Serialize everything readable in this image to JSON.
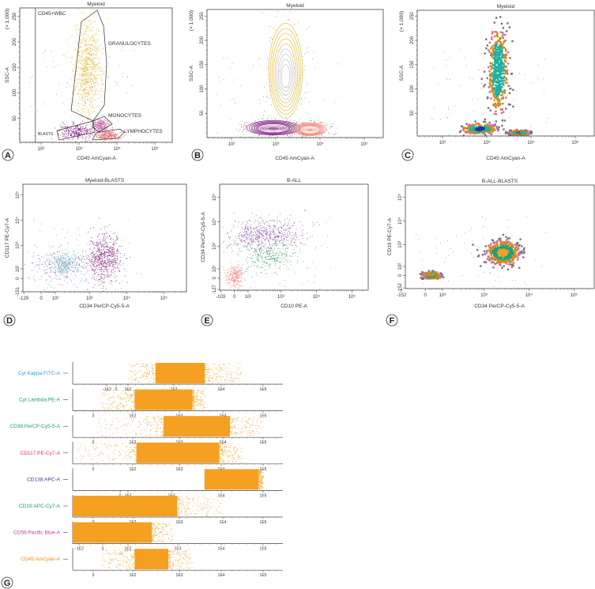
{
  "panel_letters": [
    "A",
    "B",
    "C",
    "D",
    "E",
    "F",
    "G"
  ],
  "chart_data": [
    {
      "letter": "A",
      "type": "scatter",
      "style": "dot",
      "title": "Myeloid",
      "xlabel": "CD45 AmCyan-A",
      "ylabel": "SSC-A",
      "yunit": "(× 1,000)",
      "xscale": "log",
      "yscale": "linear",
      "ylim": [
        0,
        262
      ],
      "x_ticks": [
        {
          "value": 100,
          "label": "10²"
        },
        {
          "value": 1000,
          "label": "10³"
        },
        {
          "value": 10000,
          "label": "10⁴"
        },
        {
          "value": 100000,
          "label": "10⁵"
        }
      ],
      "y_ticks": [
        {
          "value": 50,
          "label": "50"
        },
        {
          "value": 100,
          "label": "100"
        },
        {
          "value": 150,
          "label": "150"
        },
        {
          "value": 200,
          "label": "200"
        },
        {
          "value": 250,
          "label": "250"
        }
      ],
      "gates": [
        {
          "label": "CD45+WBC",
          "threshold_x": 71
        },
        {
          "label": "GRANULOCYTES",
          "color": "#e6b422",
          "x": [
            700,
            4000
          ],
          "y": [
            45,
            250
          ],
          "polygon": [
            [
              1150,
              239
            ],
            [
              3000,
              262
            ],
            [
              4450,
              231
            ],
            [
              5370,
              158
            ],
            [
              4640,
              76
            ],
            [
              2370,
              45
            ],
            [
              620,
              65
            ]
          ]
        },
        {
          "label": "MONOCYTES",
          "color": "#c86ab0",
          "x": [
            2200,
            6000
          ],
          "y": [
            22,
            50
          ],
          "polygon": [
            [
              2370,
              45
            ],
            [
              4640,
              54
            ],
            [
              7500,
              39
            ],
            [
              3300,
              23
            ],
            [
              2250,
              34
            ]
          ]
        },
        {
          "label": "LYMPHOCYTES",
          "color": "#e96a6a",
          "x": [
            2800,
            13000
          ],
          "y": [
            6,
            26
          ],
          "polygon": [
            [
              2880,
              22
            ],
            [
              12000,
              29
            ],
            [
              15500,
              23
            ],
            [
              11000,
              11
            ],
            [
              2250,
              8
            ]
          ]
        },
        {
          "label": "BLASTS",
          "color": "#7b1a7b",
          "x": [
            280,
            2400
          ],
          "y": [
            8,
            40
          ],
          "polygon": [
            [
              260,
              26
            ],
            [
              2370,
              45
            ],
            [
              2620,
              23
            ],
            [
              300,
              8
            ]
          ]
        }
      ]
    },
    {
      "letter": "B",
      "type": "contour",
      "style": "contour",
      "title": "Myeloid",
      "xlabel": "CD45 AmCyan-A",
      "ylabel": "SSC-A",
      "yunit": "(× 1,000)",
      "xscale": "log",
      "yscale": "linear",
      "ylim": [
        0,
        262
      ],
      "x_ticks": [
        {
          "value": 100,
          "label": "10²"
        },
        {
          "value": 1000,
          "label": "10³"
        },
        {
          "value": 10000,
          "label": "10⁴"
        },
        {
          "value": 100000,
          "label": "10⁵"
        }
      ],
      "y_ticks": [
        {
          "value": 50,
          "label": "50"
        },
        {
          "value": 100,
          "label": "100"
        },
        {
          "value": 150,
          "label": "150"
        },
        {
          "value": 200,
          "label": "200"
        },
        {
          "value": 250,
          "label": "250"
        }
      ],
      "populations": [
        {
          "color": "#e6b422",
          "inner": "#bbbbbb",
          "x": [
            700,
            4000
          ],
          "y": [
            40,
            235
          ]
        },
        {
          "color": "#7b1a7b",
          "inner": "#ffffff",
          "x": [
            220,
            3500
          ],
          "y": [
            5,
            35
          ]
        },
        {
          "color": "#f07f6f",
          "inner": "#ffffff",
          "x": [
            2500,
            14000
          ],
          "y": [
            4,
            30
          ]
        }
      ]
    },
    {
      "letter": "C",
      "type": "scatter",
      "style": "pseudocolor",
      "title": "Myeloid",
      "xlabel": "CD45 AmCyan-A",
      "ylabel": "SSC-A",
      "yunit": "(× 1,000)",
      "xscale": "log",
      "yscale": "linear",
      "ylim": [
        0,
        262
      ],
      "x_ticks": [
        {
          "value": 100,
          "label": "10²"
        },
        {
          "value": 1000,
          "label": "10³"
        },
        {
          "value": 10000,
          "label": "10⁴"
        },
        {
          "value": 100000,
          "label": "10⁵"
        }
      ],
      "y_ticks": [
        {
          "value": 50,
          "label": "50"
        },
        {
          "value": 100,
          "label": "100"
        },
        {
          "value": 150,
          "label": "150"
        },
        {
          "value": 200,
          "label": "200"
        },
        {
          "value": 250,
          "label": "250"
        }
      ],
      "populations": [
        {
          "core": "#1fb0a0",
          "x": [
            1000,
            3300
          ],
          "y": [
            35,
            240
          ]
        },
        {
          "core": "#22309a",
          "x": [
            250,
            2000
          ],
          "y": [
            5,
            30
          ]
        },
        {
          "core": "#c83030",
          "x": [
            3000,
            10000
          ],
          "y": [
            3,
            16
          ]
        }
      ]
    },
    {
      "letter": "D",
      "type": "scatter",
      "style": "dot",
      "title": "Myeloid-BLASTS",
      "xlabel": "CD34 PerCP-Cy5-5-A",
      "ylabel": "CD117 PE-Cy7-A",
      "xscale": "biexponential",
      "yscale": "biexponential",
      "x_ticks": [
        {
          "value": -129,
          "label": "-129"
        },
        {
          "value": 0,
          "label": "0"
        },
        {
          "value": 100,
          "label": "10²"
        },
        {
          "value": 1000,
          "label": "10³"
        },
        {
          "value": 10000,
          "label": "10⁴"
        },
        {
          "value": 100000,
          "label": "10⁵"
        }
      ],
      "y_ticks": [
        {
          "value": -151,
          "label": "-151"
        },
        {
          "value": 0,
          "label": "0"
        },
        {
          "value": 100,
          "label": "10²"
        },
        {
          "value": 1000,
          "label": "10³"
        },
        {
          "value": 10000,
          "label": "10⁴"
        },
        {
          "value": 100000,
          "label": "10⁵"
        }
      ],
      "populations": [
        {
          "color": "#7b1a7b",
          "x": [
            900,
            7000
          ],
          "y": [
            -40,
            3000
          ]
        },
        {
          "color": "#9a5aa8",
          "x": [
            -60,
            900
          ],
          "y": [
            -60,
            900
          ]
        },
        {
          "color": "#5ab8c8",
          "x": [
            50,
            600
          ],
          "y": [
            30,
            500
          ]
        }
      ]
    },
    {
      "letter": "E",
      "type": "scatter",
      "style": "dot",
      "title": "B-ALL",
      "xlabel": "CD10 PE-A",
      "ylabel": "CD34 PerCP-Cy5-5-A",
      "xscale": "biexponential",
      "yscale": "biexponential",
      "x_ticks": [
        {
          "value": -103,
          "label": "-103"
        },
        {
          "value": 0,
          "label": "0"
        },
        {
          "value": 100,
          "label": "10²"
        },
        {
          "value": 1000,
          "label": "10³"
        },
        {
          "value": 10000,
          "label": "10⁴"
        },
        {
          "value": 100000,
          "label": "10⁵"
        }
      ],
      "y_ticks": [
        {
          "value": -127,
          "label": "-127"
        },
        {
          "value": 0,
          "label": "0"
        },
        {
          "value": 100,
          "label": "10²"
        },
        {
          "value": 1000,
          "label": "10³"
        },
        {
          "value": 10000,
          "label": "10⁴"
        },
        {
          "value": 100000,
          "label": "10⁵"
        }
      ],
      "populations": [
        {
          "color": "#8a4aa0",
          "x": [
            -60,
            5000
          ],
          "y": [
            600,
            12000
          ]
        },
        {
          "color": "#2a9d5a",
          "x": [
            60,
            2500
          ],
          "y": [
            60,
            1500
          ]
        },
        {
          "color": "#f08a80",
          "x": [
            -70,
            70
          ],
          "y": [
            -90,
            150
          ]
        }
      ]
    },
    {
      "letter": "F",
      "type": "scatter",
      "style": "pseudocolor",
      "title": "B-ALL-BLASTS",
      "xlabel": "CD34 PerCP-Cy5-5-A",
      "ylabel": "CD19 PE-Cy7-A",
      "xscale": "biexponential",
      "yscale": "biexponential",
      "x_ticks": [
        {
          "value": -152,
          "label": "-152"
        },
        {
          "value": 0,
          "label": "0"
        },
        {
          "value": 100,
          "label": "10²"
        },
        {
          "value": 1000,
          "label": "10³"
        },
        {
          "value": 10000,
          "label": "10⁴"
        },
        {
          "value": 100000,
          "label": "10⁵"
        }
      ],
      "y_ticks": [
        {
          "value": -152,
          "label": "-152"
        },
        {
          "value": 0,
          "label": "0"
        },
        {
          "value": 100,
          "label": "10²"
        },
        {
          "value": 1000,
          "label": "10³"
        },
        {
          "value": 10000,
          "label": "10⁴"
        },
        {
          "value": 100000,
          "label": "10⁵"
        }
      ],
      "populations": [
        {
          "core": "#f0a020",
          "x": [
            1000,
            7000
          ],
          "y": [
            100,
            1800
          ]
        },
        {
          "core": "#c8a020",
          "x": [
            -20,
            100
          ],
          "y": [
            -40,
            40
          ]
        }
      ]
    },
    {
      "letter": "G",
      "type": "strip",
      "rows": [
        {
          "label": "Cyt Kappa:FITC-A",
          "color": "#2a9fd6",
          "ticks": [
            {
              "value": -100,
              "label": "−1E2"
            },
            {
              "value": 0,
              "label": "0"
            },
            {
              "value": 100,
              "label": "1E2"
            },
            {
              "value": 1000,
              "label": "1E3"
            },
            {
              "value": 10000,
              "label": "1E4"
            },
            {
              "value": 100000,
              "label": "1E5"
            }
          ],
          "dense": [
            400,
            4500
          ],
          "sparse": [
            100,
            30000
          ]
        },
        {
          "label": "Cyt Lambda:PE-A",
          "color": "#1a9e6a",
          "ticks": [
            {
              "value": 0,
              "label": "0"
            },
            {
              "value": 100,
              "label": "1E2"
            },
            {
              "value": 1000,
              "label": "1E3"
            },
            {
              "value": 10000,
              "label": "1E4"
            },
            {
              "value": 100000,
              "label": "1E5"
            }
          ],
          "dense": [
            110,
            2000
          ],
          "sparse": [
            20,
            4000
          ]
        },
        {
          "label": "CD38:PerCP-Cy5-5-A",
          "color": "#1a9e7a",
          "ticks": [
            {
              "value": 0,
              "label": "0"
            },
            {
              "value": 100,
              "label": "1E2"
            },
            {
              "value": 1000,
              "label": "1E3"
            },
            {
              "value": 10000,
              "label": "1E4"
            },
            {
              "value": 100000,
              "label": "1E5"
            }
          ],
          "dense": [
            460,
            15000
          ],
          "sparse": [
            10,
            100000
          ]
        },
        {
          "label": "CD117:PE-Cy7-A",
          "color": "#e0335a",
          "ticks": [
            {
              "value": 0,
              "label": "0"
            },
            {
              "value": 100,
              "label": "1E2"
            },
            {
              "value": 1000,
              "label": "1E3"
            },
            {
              "value": 10000,
              "label": "1E4"
            },
            {
              "value": 100000,
              "label": "1E5"
            }
          ],
          "dense": [
            120,
            9000
          ],
          "sparse": [
            -300,
            30000
          ]
        },
        {
          "label": "CD138:APC-A",
          "color": "#2b3f8f",
          "ticks": [
            {
              "value": 0,
              "label": "0"
            },
            {
              "value": 100,
              "label": "1E2"
            },
            {
              "value": 1000,
              "label": "1E3"
            },
            {
              "value": 10000,
              "label": "1E4"
            },
            {
              "value": 100000,
              "label": "1E5"
            }
          ],
          "dense": [
            4600,
            77000
          ],
          "sparse": [
            4600,
            200000
          ]
        },
        {
          "label": "CD19:APC-Cy7-A",
          "color": "#1a9e6a",
          "ticks": [
            {
              "value": 0,
              "label": "0"
            },
            {
              "value": 100,
              "label": "1E2"
            },
            {
              "value": 1000,
              "label": "1E3"
            },
            {
              "value": 10000,
              "label": "1E4"
            },
            {
              "value": 100000,
              "label": "1E5"
            }
          ],
          "dense": [
            -300,
            900
          ],
          "sparse": [
            -300,
            10000
          ]
        },
        {
          "label": "CD56:Pacific Blue-A",
          "color": "#c0399a",
          "ticks": [
            {
              "value": -100,
              "label": "−1E2"
            },
            {
              "value": 0,
              "label": "0"
            },
            {
              "value": 100,
              "label": "1E2"
            },
            {
              "value": 1000,
              "label": "1E3"
            },
            {
              "value": 10000,
              "label": "1E4"
            },
            {
              "value": 100000,
              "label": "1E5"
            }
          ],
          "dense": [
            -150,
            300
          ],
          "sparse": [
            -200,
            800
          ]
        },
        {
          "label": "CD45:AmCyan-A",
          "color": "#f08a24",
          "ticks": [
            {
              "value": 0,
              "label": "0"
            },
            {
              "value": 100,
              "label": "1E2"
            },
            {
              "value": 1000,
              "label": "1E3"
            },
            {
              "value": 10000,
              "label": "1E4"
            },
            {
              "value": 100000,
              "label": "1E5"
            }
          ],
          "dense": [
            110,
            580
          ],
          "sparse": [
            20,
            2000
          ]
        }
      ],
      "event_color": "#f5a020"
    }
  ]
}
